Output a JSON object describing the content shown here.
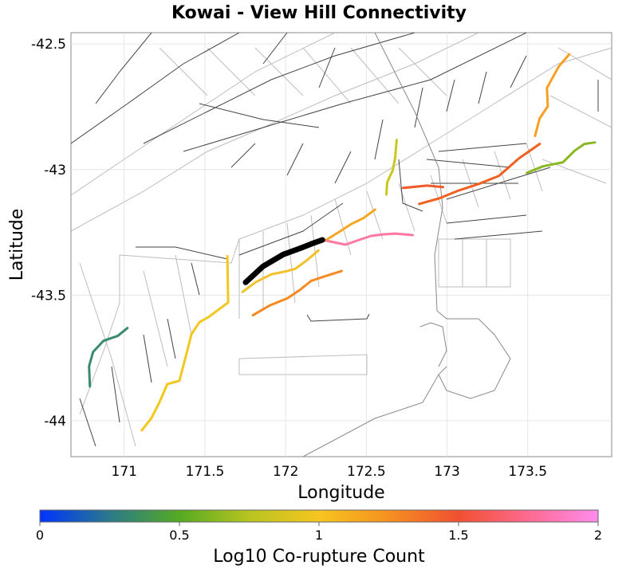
{
  "chart_data": {
    "type": "map",
    "title": "Kowai - View Hill Connectivity",
    "xlabel": "Longitude",
    "ylabel": "Latitude",
    "xlim": [
      170.67,
      174.02
    ],
    "ylim": [
      -44.143,
      -42.455
    ],
    "xticks": [
      {
        "value": 171,
        "label": "171"
      },
      {
        "value": 171.5,
        "label": "171.5"
      },
      {
        "value": 172,
        "label": "172"
      },
      {
        "value": 172.5,
        "label": "172.5"
      },
      {
        "value": 173,
        "label": "173"
      },
      {
        "value": 173.5,
        "label": "173.5"
      }
    ],
    "yticks": [
      {
        "value": -42.5,
        "label": "-42.5"
      },
      {
        "value": -43,
        "label": "-43"
      },
      {
        "value": -43.5,
        "label": "-43.5"
      },
      {
        "value": -44,
        "label": "-44"
      }
    ],
    "grid": true,
    "colorbar": {
      "label": "Log10 Co-rupture Count",
      "range": [
        0,
        2
      ],
      "ticks": [
        {
          "value": 0,
          "label": "0"
        },
        {
          "value": 0.5,
          "label": "0.5"
        },
        {
          "value": 1,
          "label": "1"
        },
        {
          "value": 1.5,
          "label": "1.5"
        },
        {
          "value": 2,
          "label": "2"
        }
      ],
      "stops": [
        {
          "value": 0,
          "color": "#0033ff"
        },
        {
          "value": 0.25,
          "color": "#2a7a8a"
        },
        {
          "value": 0.5,
          "color": "#55aa22"
        },
        {
          "value": 0.75,
          "color": "#b8c420"
        },
        {
          "value": 1,
          "color": "#f7c520"
        },
        {
          "value": 1.25,
          "color": "#f59020"
        },
        {
          "value": 1.5,
          "color": "#f05030"
        },
        {
          "value": 1.75,
          "color": "#ff6a90"
        },
        {
          "value": 2,
          "color": "#ff8cec"
        }
      ]
    },
    "source_fault": {
      "name": "Kowai - View Hill",
      "color": "#000000",
      "lon": [
        171.752,
        171.861,
        171.985,
        172.084,
        172.158,
        172.228
      ],
      "lat": [
        -43.449,
        -43.385,
        -43.338,
        -43.315,
        -43.296,
        -43.28
      ]
    },
    "ruptures": [
      {
        "value": 1.85,
        "color": "#ff78a0",
        "lon": [
          172.228,
          172.371,
          172.455,
          172.53,
          172.604,
          172.678,
          172.787
        ],
        "lat": [
          -43.28,
          -43.299,
          -43.28,
          -43.264,
          -43.258,
          -43.255,
          -43.261
        ]
      },
      {
        "value": 1.2,
        "color": "#f5a623",
        "lon": [
          172.252,
          172.332,
          172.406,
          172.48,
          172.554
        ],
        "lat": [
          -43.28,
          -43.248,
          -43.217,
          -43.194,
          -43.159
        ]
      },
      {
        "value": 1.1,
        "color": "#f2c02a",
        "lon": [
          171.733,
          171.812,
          171.911,
          172.01,
          172.059,
          172.134,
          172.203
        ],
        "lat": [
          -43.487,
          -43.449,
          -43.417,
          -43.404,
          -43.395,
          -43.36,
          -43.322
        ]
      },
      {
        "value": 1.3,
        "color": "#f58a20",
        "lon": [
          171.797,
          171.901,
          172.01,
          172.084,
          172.158,
          172.233,
          172.347
        ],
        "lat": [
          -43.58,
          -43.541,
          -43.513,
          -43.481,
          -43.443,
          -43.427,
          -43.404
        ]
      },
      {
        "value": 1.0,
        "color": "#f2c81e",
        "lon": [
          171.639,
          171.644,
          171.525,
          171.465,
          171.416,
          171.391,
          171.342,
          171.267,
          171.218,
          171.168,
          171.109
        ],
        "lat": [
          -43.344,
          -43.529,
          -43.586,
          -43.608,
          -43.656,
          -43.72,
          -43.841,
          -43.854,
          -43.927,
          -43.99,
          -44.038
        ]
      },
      {
        "value": 0.35,
        "color": "#3a8a70",
        "lon": [
          171.02,
          170.96,
          170.871,
          170.807,
          170.782,
          170.787
        ],
        "lat": [
          -43.631,
          -43.662,
          -43.682,
          -43.726,
          -43.783,
          -43.863
        ]
      },
      {
        "value": 0.85,
        "color": "#c8c820",
        "lon": [
          172.688,
          172.678,
          172.663,
          172.629,
          172.624
        ],
        "lat": [
          -42.882,
          -42.955,
          -43.003,
          -43.051,
          -43.099
        ]
      },
      {
        "value": 1.5,
        "color": "#f05a28",
        "lon": [
          172.728,
          172.876,
          172.975
        ],
        "lat": [
          -43.073,
          -43.064,
          -43.07
        ]
      },
      {
        "value": 1.45,
        "color": "#f06020",
        "lon": [
          172.827,
          172.95,
          173.074,
          173.198,
          173.322,
          173.446,
          173.574
        ],
        "lat": [
          -43.137,
          -43.115,
          -43.083,
          -43.057,
          -43.025,
          -42.955,
          -42.898
        ]
      },
      {
        "value": 1.25,
        "color": "#f5a020",
        "lon": [
          173.545,
          173.574,
          173.624,
          173.619,
          173.693,
          173.757
        ],
        "lat": [
          -42.866,
          -42.796,
          -42.748,
          -42.675,
          -42.589,
          -42.541
        ]
      },
      {
        "value": 0.6,
        "color": "#8ab820",
        "lon": [
          173.495,
          173.594,
          173.718,
          173.792,
          173.851,
          173.916
        ],
        "lat": [
          -43.013,
          -42.987,
          -42.971,
          -42.924,
          -42.898,
          -42.892
        ]
      }
    ]
  }
}
